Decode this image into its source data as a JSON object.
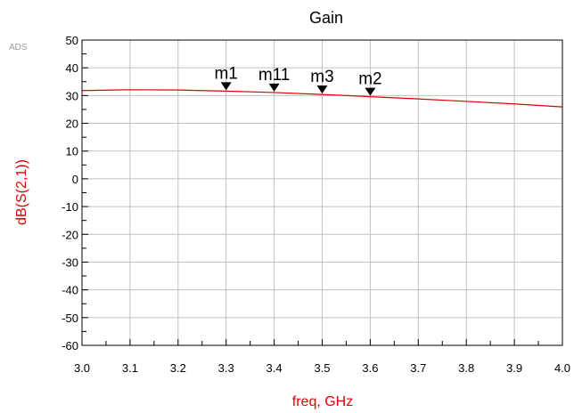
{
  "watermark": "ADS",
  "chart_data": {
    "type": "line",
    "title": "Gain",
    "xlabel": "freq, GHz",
    "ylabel": "dB(S(2,1))",
    "xlim": [
      3.0,
      4.0
    ],
    "ylim": [
      -60,
      50
    ],
    "x_ticks": [
      "3.0",
      "3.1",
      "3.2",
      "3.3",
      "3.4",
      "3.5",
      "3.6",
      "3.7",
      "3.8",
      "3.9",
      "4.0"
    ],
    "y_ticks": [
      "50",
      "40",
      "30",
      "20",
      "10",
      "0",
      "-10",
      "-20",
      "-30",
      "-40",
      "-50",
      "-60"
    ],
    "grid": true,
    "series": [
      {
        "color": "#e00000",
        "x": [
          3.0,
          3.1,
          3.2,
          3.3,
          3.4,
          3.5,
          3.6,
          3.7,
          3.8,
          3.9,
          4.0
        ],
        "y": [
          31.8,
          32.1,
          32.0,
          31.6,
          31.1,
          30.4,
          29.6,
          28.8,
          27.9,
          27.0,
          25.9
        ]
      }
    ],
    "markers": [
      {
        "label": "m1",
        "x": 3.3,
        "y": 31.6
      },
      {
        "label": "m11",
        "x": 3.4,
        "y": 31.1
      },
      {
        "label": "m3",
        "x": 3.5,
        "y": 30.4
      },
      {
        "label": "m2",
        "x": 3.6,
        "y": 29.6
      }
    ]
  }
}
